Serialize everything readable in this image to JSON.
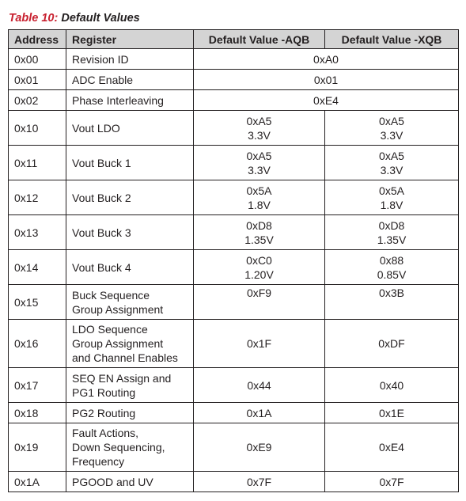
{
  "caption": {
    "number": "Table 10:",
    "title": "Default Values"
  },
  "table": {
    "headers": [
      "Address",
      "Register",
      "Default Value -AQB",
      "Default Value -XQB"
    ],
    "rows": [
      {
        "address": "0x00",
        "register": [
          "Revision ID"
        ],
        "shared": [
          "0xA0"
        ]
      },
      {
        "address": "0x01",
        "register": [
          "ADC Enable"
        ],
        "shared": [
          "0x01"
        ]
      },
      {
        "address": "0x02",
        "register": [
          "Phase Interleaving"
        ],
        "shared": [
          "0xE4"
        ]
      },
      {
        "address": "0x10",
        "register": [
          "Vout LDO"
        ],
        "aqb": [
          "0xA5",
          "3.3V"
        ],
        "xqb": [
          "0xA5",
          "3.3V"
        ]
      },
      {
        "address": "0x11",
        "register": [
          "Vout Buck 1"
        ],
        "aqb": [
          "0xA5",
          "3.3V"
        ],
        "xqb": [
          "0xA5",
          "3.3V"
        ]
      },
      {
        "address": "0x12",
        "register": [
          "Vout Buck 2"
        ],
        "aqb": [
          "0x5A",
          "1.8V"
        ],
        "xqb": [
          "0x5A",
          "1.8V"
        ]
      },
      {
        "address": "0x13",
        "register": [
          "Vout Buck 3"
        ],
        "aqb": [
          "0xD8",
          "1.35V"
        ],
        "xqb": [
          "0xD8",
          "1.35V"
        ]
      },
      {
        "address": "0x14",
        "register": [
          "Vout Buck 4"
        ],
        "aqb": [
          "0xC0",
          "1.20V"
        ],
        "xqb": [
          "0x88",
          "0.85V"
        ]
      },
      {
        "address": "0x15",
        "register": [
          "Buck Sequence",
          "Group Assignment"
        ],
        "aqb": [
          "0xF9"
        ],
        "xqb": [
          "0x3B"
        ],
        "values_top": true
      },
      {
        "address": "0x16",
        "register": [
          "LDO Sequence",
          "Group Assignment",
          "and Channel Enables"
        ],
        "aqb": [
          "0x1F"
        ],
        "xqb": [
          "0xDF"
        ]
      },
      {
        "address": "0x17",
        "register": [
          "SEQ EN Assign and",
          "PG1 Routing"
        ],
        "aqb": [
          "0x44"
        ],
        "xqb": [
          "0x40"
        ]
      },
      {
        "address": "0x18",
        "register": [
          "PG2 Routing"
        ],
        "aqb": [
          "0x1A"
        ],
        "xqb": [
          "0x1E"
        ]
      },
      {
        "address": "0x19",
        "register": [
          "Fault Actions,",
          "Down Sequencing,",
          "Frequency"
        ],
        "aqb": [
          "0xE9"
        ],
        "xqb": [
          "0xE4"
        ]
      },
      {
        "address": "0x1A",
        "register": [
          "PGOOD and UV"
        ],
        "aqb": [
          "0x7F"
        ],
        "xqb": [
          "0x7F"
        ]
      }
    ]
  }
}
